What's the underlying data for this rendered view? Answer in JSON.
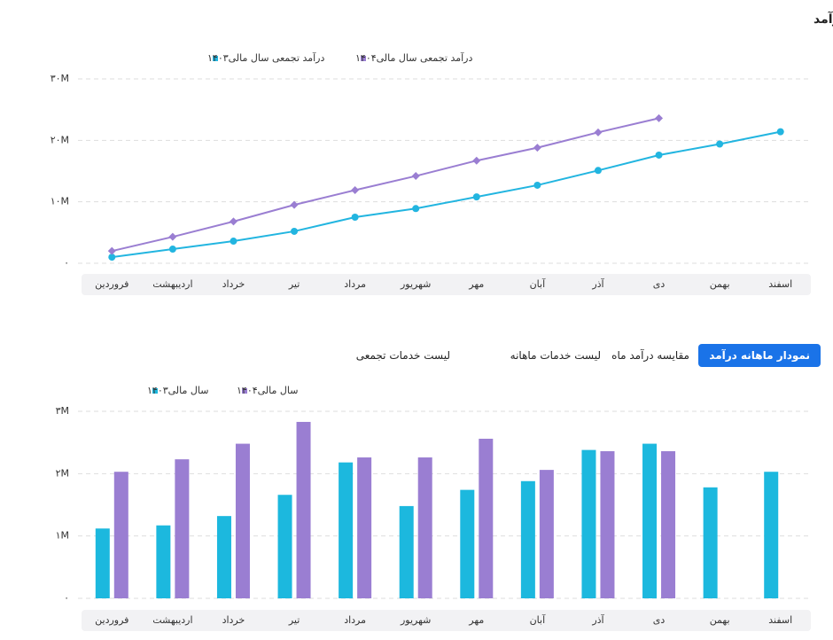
{
  "header": {
    "title": "نمودار تجمعی درآمد"
  },
  "tabs": [
    "نمودار ماهانه درآمد",
    "مقایسه درآمد ماه",
    "لیست خدمات ماهانه",
    "لیست خدمات تجمعی"
  ],
  "active_tab": 0,
  "chart_data": [
    {
      "type": "line",
      "categories": [
        "فروردین",
        "اردیبهشت",
        "خرداد",
        "تیر",
        "مرداد",
        "شهریور",
        "مهر",
        "آبان",
        "آذر",
        "دی",
        "بهمن",
        "اسفند"
      ],
      "series": [
        {
          "name": "درآمد تجمعی سال مالی۱۴۰۳",
          "color": "#22b5e0",
          "marker": "circle",
          "values": [
            1000000,
            2300000,
            3600000,
            5200000,
            7500000,
            8900000,
            10800000,
            12700000,
            15100000,
            17600000,
            19400000,
            21400000
          ]
        },
        {
          "name": "درآمد تجمعی سال مالی۱۴۰۴",
          "color": "#9a7ed2",
          "marker": "diamond",
          "values": [
            2000000,
            4300000,
            6800000,
            9500000,
            11900000,
            14200000,
            16700000,
            18800000,
            21300000,
            23600000,
            null,
            null
          ]
        }
      ],
      "ylim": [
        0,
        30000000
      ],
      "yticks": [
        {
          "value": 0,
          "label": "۰"
        },
        {
          "value": 10000000,
          "label": "۱۰M"
        },
        {
          "value": 20000000,
          "label": "۲۰M"
        },
        {
          "value": 30000000,
          "label": "۳۰M"
        }
      ],
      "grid": true
    },
    {
      "type": "bar",
      "categories": [
        "فروردین",
        "اردیبهشت",
        "خرداد",
        "تیر",
        "مرداد",
        "شهریور",
        "مهر",
        "آبان",
        "آذر",
        "دی",
        "بهمن",
        "اسفند"
      ],
      "series": [
        {
          "name": "سال مالی۱۴۰۳",
          "color": "#1cb8de",
          "values": [
            1120000,
            1170000,
            1320000,
            1660000,
            2180000,
            1480000,
            1740000,
            1880000,
            2380000,
            2480000,
            1780000,
            2030000
          ]
        },
        {
          "name": "سال مالی۱۴۰۴",
          "color": "#9a7ed2",
          "values": [
            2030000,
            2230000,
            2480000,
            2830000,
            2260000,
            2260000,
            2560000,
            2060000,
            2360000,
            2360000,
            null,
            null
          ]
        }
      ],
      "ylim": [
        0,
        3000000
      ],
      "yticks": [
        {
          "value": 0,
          "label": "۰"
        },
        {
          "value": 1000000,
          "label": "۱M"
        },
        {
          "value": 2000000,
          "label": "۲M"
        },
        {
          "value": 3000000,
          "label": "۳M"
        }
      ],
      "grid": true
    }
  ]
}
